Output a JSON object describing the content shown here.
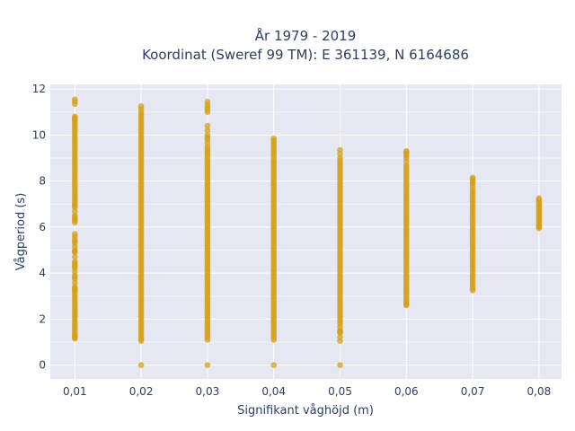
{
  "chart_data": {
    "type": "scatter",
    "title_line1": "År 1979 - 2019",
    "title_line2": "Koordinat (Sweref 99 TM): E 361139, N 6164686",
    "xlabel": "Signifikant våghöjd (m)",
    "ylabel": "Vågperiod (s)",
    "x_tick_labels": [
      "0,01",
      "0,02",
      "0,03",
      "0,04",
      "0,05",
      "0,06",
      "0,07",
      "0,08"
    ],
    "x_ticks": [
      0.01,
      0.02,
      0.03,
      0.04,
      0.05,
      0.06,
      0.07,
      0.08
    ],
    "y_ticks": [
      0,
      2,
      4,
      6,
      8,
      10,
      12
    ],
    "y_tick_labels": [
      "0",
      "2",
      "4",
      "6",
      "8",
      "10",
      "12"
    ],
    "xlim": [
      0.0063,
      0.0834
    ],
    "ylim": [
      -0.6,
      12.2
    ],
    "grid": true,
    "marker_color": "#D4A017",
    "plot_bgcolor": "#E5E8F2",
    "points_by_x": [
      {
        "x": 0.01,
        "y": [
          11.55,
          11.35,
          10.8,
          10.7,
          10.6,
          10.4,
          10.2,
          10.0,
          9.8,
          9.6,
          9.4,
          9.2,
          9.0,
          8.8,
          8.6,
          8.4,
          8.2,
          8.0,
          7.8,
          7.6,
          7.4,
          7.2,
          7.0,
          6.85,
          6.5,
          6.35,
          6.2,
          5.7,
          5.45,
          5.3,
          5.0,
          4.9,
          4.5,
          4.35,
          4.2,
          3.9,
          3.75,
          3.4,
          3.3,
          3.2,
          3.0,
          2.8,
          2.6,
          2.4,
          2.2,
          2.0,
          1.8,
          1.6,
          1.4,
          1.25,
          1.15
        ]
      },
      {
        "x": 0.02,
        "y": [
          11.25,
          11.0,
          10.8,
          10.6,
          10.4,
          10.2,
          10.0,
          9.8,
          9.6,
          9.4,
          9.2,
          9.0,
          8.8,
          8.6,
          8.4,
          8.2,
          8.0,
          7.8,
          7.6,
          7.4,
          7.2,
          7.0,
          6.8,
          6.6,
          6.4,
          6.2,
          6.0,
          5.8,
          5.6,
          5.4,
          5.2,
          5.0,
          4.8,
          4.6,
          4.4,
          4.2,
          4.0,
          3.8,
          3.6,
          3.4,
          3.2,
          3.0,
          2.8,
          2.6,
          2.4,
          2.2,
          2.0,
          1.8,
          1.6,
          1.4,
          1.2,
          1.05,
          0.0
        ]
      },
      {
        "x": 0.03,
        "y": [
          11.45,
          11.2,
          11.0,
          10.4,
          10.0,
          9.8,
          9.5,
          9.3,
          9.1,
          8.9,
          8.7,
          8.5,
          8.3,
          8.1,
          7.9,
          7.7,
          7.5,
          7.3,
          7.1,
          6.9,
          6.7,
          6.5,
          6.3,
          6.1,
          5.9,
          5.7,
          5.5,
          5.3,
          5.1,
          4.9,
          4.7,
          4.5,
          4.3,
          4.1,
          3.9,
          3.7,
          3.5,
          3.3,
          3.1,
          2.9,
          2.7,
          2.5,
          2.3,
          2.1,
          1.9,
          1.7,
          1.5,
          1.3,
          1.1,
          0.0
        ]
      },
      {
        "x": 0.04,
        "y": [
          9.85,
          9.7,
          9.5,
          9.3,
          9.1,
          8.9,
          8.7,
          8.5,
          8.3,
          8.1,
          7.9,
          7.7,
          7.5,
          7.3,
          7.1,
          6.9,
          6.7,
          6.5,
          6.3,
          6.1,
          5.9,
          5.7,
          5.5,
          5.3,
          5.1,
          4.9,
          4.7,
          4.5,
          4.3,
          4.1,
          3.9,
          3.7,
          3.5,
          3.3,
          3.1,
          2.9,
          2.7,
          2.5,
          2.3,
          2.1,
          1.9,
          1.7,
          1.5,
          1.3,
          1.1,
          0.0
        ]
      },
      {
        "x": 0.05,
        "y": [
          9.35,
          9.0,
          8.8,
          8.6,
          8.4,
          8.2,
          8.0,
          7.8,
          7.6,
          7.4,
          7.2,
          7.0,
          6.8,
          6.6,
          6.4,
          6.2,
          6.0,
          5.8,
          5.6,
          5.4,
          5.2,
          5.0,
          4.8,
          4.6,
          4.4,
          4.2,
          4.0,
          3.8,
          3.6,
          3.4,
          3.2,
          3.0,
          2.8,
          2.6,
          2.4,
          2.2,
          2.0,
          1.8,
          1.5,
          1.4,
          1.05,
          0.0
        ]
      },
      {
        "x": 0.06,
        "y": [
          9.3,
          9.2,
          9.0,
          8.7,
          8.5,
          8.3,
          8.1,
          7.9,
          7.7,
          7.5,
          7.3,
          7.1,
          6.9,
          6.7,
          6.5,
          6.3,
          6.1,
          5.9,
          5.7,
          5.5,
          5.3,
          5.1,
          4.9,
          4.7,
          4.5,
          4.3,
          4.1,
          3.9,
          3.7,
          3.5,
          3.3,
          3.1,
          2.9,
          2.7,
          2.6
        ]
      },
      {
        "x": 0.07,
        "y": [
          8.15,
          8.0,
          7.85,
          7.6,
          7.4,
          7.2,
          7.0,
          6.8,
          6.6,
          6.4,
          6.2,
          6.0,
          5.8,
          5.6,
          5.4,
          5.2,
          5.0,
          4.8,
          4.6,
          4.4,
          4.2,
          4.0,
          3.8,
          3.6,
          3.4,
          3.25
        ]
      },
      {
        "x": 0.08,
        "y": [
          7.25,
          7.1,
          6.95,
          6.8,
          6.65,
          6.5,
          6.35,
          6.2,
          6.05,
          5.95
        ]
      }
    ]
  }
}
